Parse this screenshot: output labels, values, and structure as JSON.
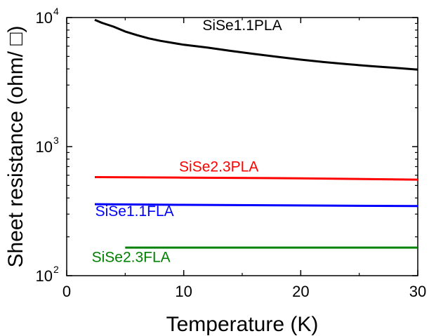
{
  "chart_data": {
    "type": "line",
    "xlabel": "Temperature (K)",
    "ylabel": "Sheet resistance (ohm/ □)",
    "xlim": [
      0,
      30
    ],
    "ylim": [
      100,
      10000
    ],
    "yscale": "log",
    "x_ticks": [
      0,
      10,
      20,
      30
    ],
    "x_tick_labels": [
      "0",
      "10",
      "20",
      "30"
    ],
    "y_ticks": [
      {
        "value": 100,
        "base": "10",
        "exp": "2"
      },
      {
        "value": 1000,
        "base": "10",
        "exp": "3"
      },
      {
        "value": 10000,
        "base": "10",
        "exp": "4"
      }
    ],
    "grid": false,
    "series": [
      {
        "name": "SiSe1.1PLA",
        "color": "#000000",
        "x": [
          2.4,
          3,
          4,
          5,
          6,
          7,
          8,
          10,
          12,
          14,
          16,
          18,
          20,
          22,
          24,
          26,
          28,
          30
        ],
        "y": [
          9600,
          9100,
          8500,
          7800,
          7300,
          6900,
          6600,
          6150,
          5850,
          5520,
          5220,
          4960,
          4720,
          4520,
          4350,
          4200,
          4080,
          3950
        ]
      },
      {
        "name": "SiSe2.3PLA",
        "color": "#ff0000",
        "x": [
          2.4,
          10,
          20,
          30
        ],
        "y": [
          580,
          575,
          568,
          555
        ]
      },
      {
        "name": "SiSe1.1FLA",
        "color": "#0000ff",
        "x": [
          2.4,
          10,
          20,
          30
        ],
        "y": [
          358,
          354,
          350,
          346
        ]
      },
      {
        "name": "SiSe2.3FLA",
        "color": "#008000",
        "x": [
          5,
          10,
          20,
          30
        ],
        "y": [
          165,
          165,
          165,
          165
        ]
      }
    ],
    "annotations": [
      {
        "text": "SiSe1.1PLA",
        "x": 15.0,
        "y": 8000,
        "color": "#000000"
      },
      {
        "text": "SiSe2.3PLA",
        "x": 13.0,
        "y": 640,
        "color": "#ff0000"
      },
      {
        "text": "SiSe1.1FLA",
        "x": 5.8,
        "y": 290,
        "color": "#0000ff"
      },
      {
        "text": "SiSe2.3FLA",
        "x": 5.5,
        "y": 128,
        "color": "#008000"
      }
    ]
  }
}
